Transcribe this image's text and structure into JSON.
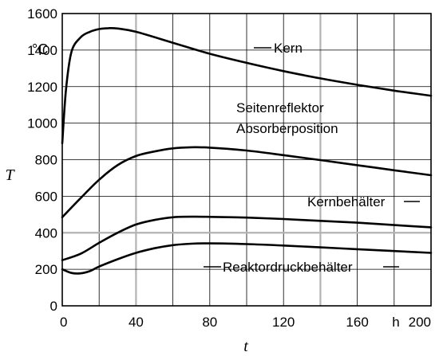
{
  "chart_data": {
    "type": "line",
    "xlabel": "t",
    "ylabel": "T",
    "x_unit": "h",
    "y_unit": "°C",
    "xlim": [
      0,
      200
    ],
    "ylim": [
      0,
      1600
    ],
    "x_ticks": [
      0,
      40,
      80,
      120,
      160,
      200
    ],
    "y_ticks": [
      0,
      200,
      400,
      600,
      800,
      1000,
      1200,
      1400,
      1600
    ],
    "grid": true,
    "highlight_gridlines": {
      "x": [
        40,
        140
      ],
      "y": [
        400
      ]
    },
    "series": [
      {
        "name": "Kern",
        "x": [
          0,
          2,
          5,
          10,
          15,
          20,
          25,
          30,
          40,
          60,
          80,
          100,
          120,
          140,
          160,
          180,
          200
        ],
        "y": [
          890,
          1180,
          1390,
          1470,
          1500,
          1515,
          1520,
          1518,
          1500,
          1440,
          1380,
          1330,
          1285,
          1245,
          1210,
          1178,
          1150
        ]
      },
      {
        "name": "Seitenreflektor Absorberposition",
        "x": [
          0,
          10,
          20,
          30,
          40,
          50,
          60,
          70,
          80,
          100,
          120,
          140,
          160,
          180,
          200
        ],
        "y": [
          485,
          590,
          690,
          770,
          820,
          845,
          862,
          868,
          866,
          850,
          825,
          798,
          770,
          742,
          715
        ]
      },
      {
        "name": "Kernbehälter",
        "x": [
          0,
          10,
          20,
          30,
          40,
          50,
          60,
          70,
          80,
          100,
          120,
          140,
          160,
          180,
          200
        ],
        "y": [
          250,
          285,
          345,
          400,
          445,
          470,
          485,
          488,
          487,
          483,
          475,
          465,
          455,
          442,
          430
        ]
      },
      {
        "name": "Reaktordruckbehälter",
        "x": [
          0,
          5,
          10,
          15,
          20,
          30,
          40,
          50,
          60,
          70,
          80,
          100,
          120,
          140,
          160,
          180,
          200
        ],
        "y": [
          200,
          180,
          178,
          190,
          215,
          255,
          290,
          315,
          332,
          340,
          342,
          338,
          330,
          320,
          310,
          300,
          290
        ]
      }
    ],
    "labels": {
      "kern": "Kern",
      "seitenreflektor_line1": "Seitenreflektor",
      "seitenreflektor_line2": "Absorberposition",
      "kernbehaelter": "Kernbehälter",
      "reaktordruckbehaelter": "Reaktordruckbehälter"
    }
  }
}
